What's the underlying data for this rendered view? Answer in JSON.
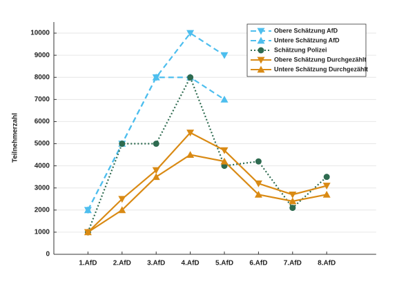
{
  "chart_data": {
    "type": "line",
    "y_label": "Teilnehmerzahl",
    "categories": [
      "1.AfD",
      "2.AfD",
      "3.AfD",
      "4.AfD",
      "5.AfD",
      "6.AfD",
      "7.AfD",
      "8.AfD"
    ],
    "ylim": [
      0,
      10500
    ],
    "yticks": [
      0,
      1000,
      2000,
      3000,
      4000,
      5000,
      6000,
      7000,
      8000,
      9000,
      10000
    ],
    "grid": true,
    "legend": "upper right",
    "series": [
      {
        "name": "Obere Schätzung AfD",
        "color": "#4dbeee",
        "dash": "dashed",
        "marker": "down",
        "values": [
          2000,
          5000,
          8000,
          10000,
          9000,
          null,
          null,
          null
        ]
      },
      {
        "name": "Untere Schätzung AfD",
        "color": "#4dbeee",
        "dash": "dashed",
        "marker": "up",
        "values": [
          2000,
          5000,
          8000,
          8000,
          7000,
          null,
          null,
          null
        ]
      },
      {
        "name": "Schätzung Polizei",
        "color": "#2e6b50",
        "dash": "dotted",
        "marker": "circle",
        "values": [
          1000,
          5000,
          5000,
          8000,
          4000,
          4200,
          2100,
          3500
        ]
      },
      {
        "name": "Obere Schätzung Durchgezählt",
        "color": "#d98a14",
        "dash": "solid",
        "marker": "down",
        "values": [
          1000,
          2500,
          3800,
          5500,
          4700,
          3200,
          2700,
          3100
        ]
      },
      {
        "name": "Untere Schätzung Durchgezählt",
        "color": "#d98a14",
        "dash": "solid",
        "marker": "up",
        "values": [
          1000,
          2000,
          3500,
          4500,
          4200,
          2700,
          2400,
          2700
        ]
      }
    ]
  }
}
